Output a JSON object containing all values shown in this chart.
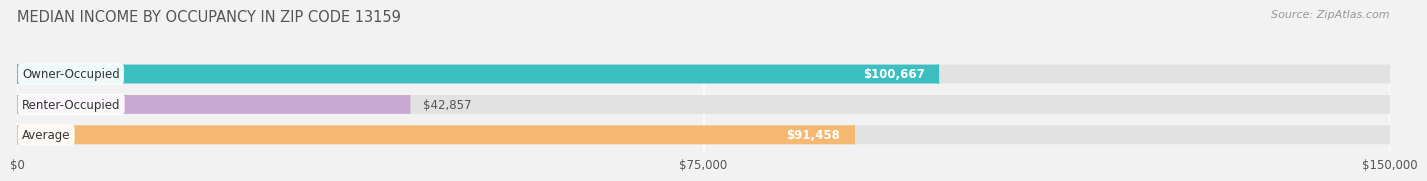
{
  "title": "MEDIAN INCOME BY OCCUPANCY IN ZIP CODE 13159",
  "source": "Source: ZipAtlas.com",
  "categories": [
    "Owner-Occupied",
    "Renter-Occupied",
    "Average"
  ],
  "values": [
    100667,
    42857,
    91458
  ],
  "bar_colors": [
    "#3bbfc0",
    "#c9a8d4",
    "#f5b870"
  ],
  "value_labels": [
    "$100,667",
    "$42,857",
    "$91,458"
  ],
  "value_label_inside": [
    true,
    false,
    true
  ],
  "value_label_colors_inside": [
    "white",
    "#666666",
    "white"
  ],
  "xlim": [
    0,
    150000
  ],
  "xticks": [
    0,
    75000,
    150000
  ],
  "xticklabels": [
    "$0",
    "$75,000",
    "$150,000"
  ],
  "bar_height": 0.62,
  "background_color": "#f2f2f2",
  "bar_background_color": "#e2e2e2",
  "title_fontsize": 10.5,
  "source_fontsize": 8,
  "label_fontsize": 8.5,
  "value_fontsize": 8.5,
  "tick_fontsize": 8.5
}
